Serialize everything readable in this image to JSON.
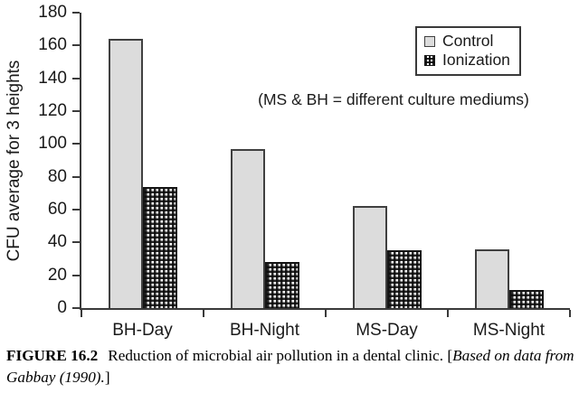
{
  "chart_data": {
    "type": "bar",
    "title": "",
    "categories": [
      "BH-Day",
      "BH-Night",
      "MS-Day",
      "MS-Night"
    ],
    "series": [
      {
        "name": "Control",
        "values": [
          164,
          97,
          62,
          36
        ]
      },
      {
        "name": "Ionization",
        "values": [
          74,
          28,
          35,
          11
        ]
      }
    ],
    "xlabel": "",
    "ylabel": "CFU average for 3 heights",
    "ylim": [
      0,
      180
    ],
    "yticks": [
      0,
      20,
      40,
      60,
      80,
      100,
      120,
      140,
      160,
      180
    ],
    "grid": false,
    "legend_position": "top-right",
    "annotation": "(MS & BH = different culture mediums)"
  },
  "caption": {
    "figure_label": "FIGURE 16.2",
    "body": "Reduction of microbial air pollution in a dental clinic. [",
    "source": "Based on data from Gabbay (1990).",
    "tail": "]"
  },
  "colors": {
    "axis": "#3a3a3a",
    "text": "#1a1a1a",
    "control_fill": "#dcdcdc",
    "control_border": "#404040",
    "ionization_pattern": "#0a0a0a",
    "background": "#ffffff"
  }
}
